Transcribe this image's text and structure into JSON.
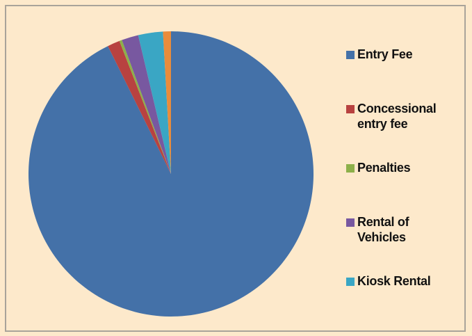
{
  "chart_data": {
    "type": "pie",
    "title": "",
    "legend_position": "right",
    "series": [
      {
        "labels": [
          "Entry Fee",
          "Concessional entry fee",
          "Penalties",
          "Rental of Vehicles",
          "Kiosk Rental",
          ""
        ],
        "values": [
          92.7,
          1.4,
          0.3,
          1.9,
          2.8,
          0.9
        ],
        "colors": [
          "#4471a8",
          "#b84240",
          "#8db04a",
          "#7858a0",
          "#3aa6c4",
          "#e98c3b"
        ]
      }
    ]
  },
  "legend": {
    "items": [
      {
        "label": "Entry Fee",
        "color": "#4471a8"
      },
      {
        "label": "Concessional\nentry fee",
        "color": "#b84240"
      },
      {
        "label": "Penalties",
        "color": "#8db04a"
      },
      {
        "label": "Rental of\nVehicles",
        "color": "#7858a0"
      },
      {
        "label": "Kiosk Rental",
        "color": "#3aa6c4"
      }
    ]
  }
}
